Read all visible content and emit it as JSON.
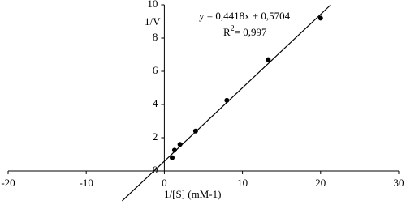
{
  "chart_data": {
    "type": "scatter",
    "x_label": "1/[S]  (mM-1)",
    "y_label": "1/V",
    "annotations": [
      "y = 0,4418x + 0,5704"
    ],
    "r_squared": {
      "prefix": "R",
      "superscript": "2",
      "text": "= 0,997"
    },
    "xlim": [
      -20,
      30
    ],
    "ylim": [
      -2,
      10
    ],
    "xticks": [
      -20,
      -10,
      0,
      10,
      20,
      30
    ],
    "yticks": [
      0,
      2,
      4,
      6,
      8,
      10
    ],
    "series": [
      {
        "color": "#000000",
        "x": [
          1,
          1.3,
          2,
          4,
          8,
          13.3,
          20
        ],
        "values": [
          0.8,
          1.25,
          1.6,
          2.4,
          4.25,
          6.7,
          9.2
        ]
      }
    ],
    "trendline": {
      "color": "#000000",
      "x": [
        -5.4,
        21.3
      ],
      "values": [
        -1.8,
        10
      ]
    }
  }
}
